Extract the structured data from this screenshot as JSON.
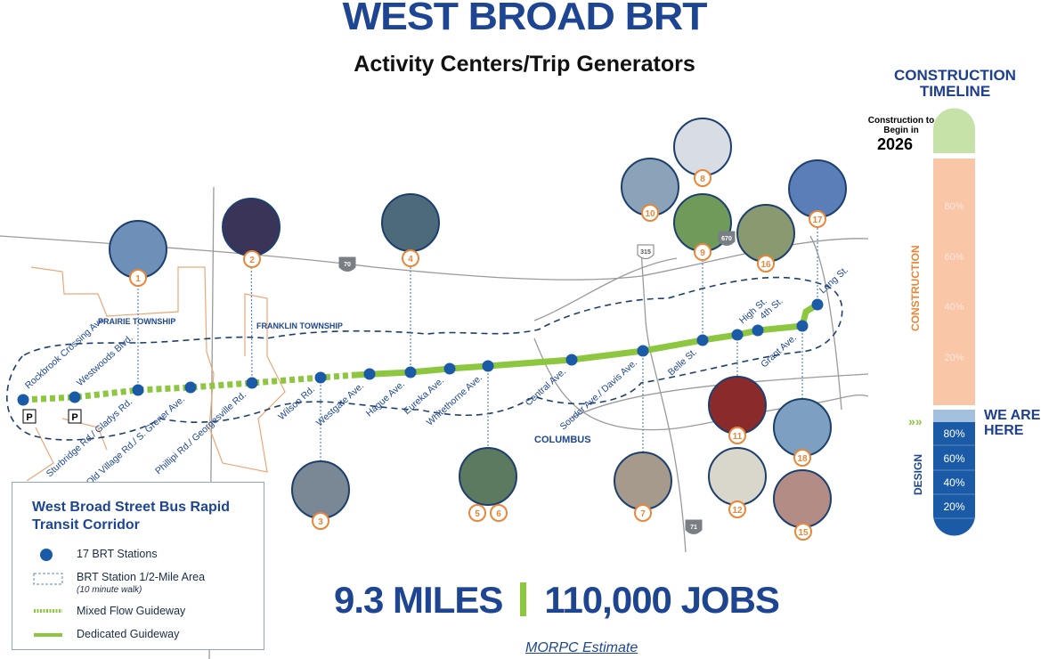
{
  "header": {
    "title": "WEST BROAD BRT",
    "subtitle": "Activity Centers/Trip Generators"
  },
  "colors": {
    "brand_blue": "#1d4592",
    "station_blue": "#1a5aa6",
    "guideway_green": "#8dc63f",
    "photo_orange": "#e8873a",
    "boundary_orange": "#e9a878"
  },
  "map_labels": {
    "prairie": "PRAIRIE TOWNSHIP",
    "franklin": "FRANKLIN TOWNSHIP",
    "columbus": "COLUMBUS",
    "parking": "P"
  },
  "highways": [
    "70",
    "315",
    "670",
    "71"
  ],
  "stations": [
    "Rockbrook Crossing Ave.",
    "Westwoods Blvd.",
    "Sturbridge Rd./ Gladys Rd.",
    "Old Village Rd./ S. Grener Ave.",
    "Phillipi Rd./ Georgesville Rd.",
    "Wilson Rd.",
    "Westgate Ave.",
    "Hague Ave.",
    "Eureka Ave.",
    "Whitethorne Ave.",
    "Central Ave.",
    "Souder Ave./ Davis Ave.",
    "Belle St.",
    "High St.",
    "4th St.",
    "Grant Ave.",
    "Long St."
  ],
  "activity_centers": [
    "1",
    "2",
    "3",
    "4",
    "5",
    "6",
    "7",
    "8",
    "9",
    "10",
    "11",
    "12",
    "15",
    "16",
    "17",
    "18"
  ],
  "timeline": {
    "title": "CONSTRUCTION TIMELINE",
    "begin_note": "Construction to Begin in",
    "begin_year": "2026",
    "construction_label": "CONSTRUCTION",
    "construction_ticks": [
      "80%",
      "60%",
      "40%",
      "20%"
    ],
    "design_label": "DESIGN",
    "design_ticks": [
      "80%",
      "60%",
      "40%",
      "20%"
    ],
    "marker": "WE ARE HERE",
    "design_progress_percent": 100,
    "construction_progress_percent": 0
  },
  "legend": {
    "title": "West Broad Street Bus Rapid Transit Corridor",
    "items": [
      "17 BRT Stations",
      "BRT Station 1/2-Mile Area",
      "(10 minute walk)",
      "Mixed Flow Guideway",
      "Dedicated Guideway"
    ]
  },
  "stats": {
    "miles": "9.3 MILES",
    "jobs": "110,000 JOBS",
    "source": "MORPC Estimate"
  }
}
